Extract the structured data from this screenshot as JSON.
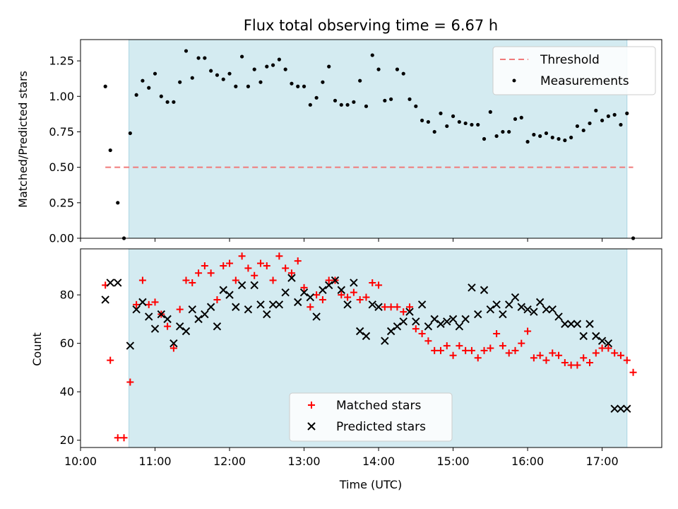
{
  "chart_data": [
    {
      "type": "scatter",
      "title": "Flux total observing time = 6.67 h",
      "xlabel": "",
      "ylabel": "Matched/Predicted stars",
      "xlim": [
        "10:00",
        "17:48"
      ],
      "ylim": [
        0,
        1.4
      ],
      "yticks": [
        "0.00",
        "0.25",
        "0.50",
        "0.75",
        "1.00",
        "1.25"
      ],
      "shaded_span": [
        "10:39",
        "17:20"
      ],
      "shade_color": "#d4ebf1",
      "legend_position": "top-right",
      "series": [
        {
          "name": "Threshold",
          "kind": "dashed-line",
          "color": "#f07a7a",
          "x": [
            "10:20",
            "17:25"
          ],
          "y": [
            0.5,
            0.5
          ]
        },
        {
          "name": "Measurements",
          "kind": "dot",
          "color": "#000000",
          "x": [
            "10:20",
            "10:24",
            "10:30",
            "10:35",
            "10:40",
            "10:45",
            "10:50",
            "10:55",
            "11:00",
            "11:05",
            "11:10",
            "11:15",
            "11:20",
            "11:25",
            "11:30",
            "11:35",
            "11:40",
            "11:45",
            "11:50",
            "11:55",
            "12:00",
            "12:05",
            "12:10",
            "12:15",
            "12:20",
            "12:25",
            "12:30",
            "12:35",
            "12:40",
            "12:45",
            "12:50",
            "12:55",
            "13:00",
            "13:05",
            "13:10",
            "13:15",
            "13:20",
            "13:25",
            "13:30",
            "13:35",
            "13:40",
            "13:45",
            "13:50",
            "13:55",
            "14:00",
            "14:05",
            "14:10",
            "14:15",
            "14:20",
            "14:25",
            "14:30",
            "14:35",
            "14:40",
            "14:45",
            "14:50",
            "14:55",
            "15:00",
            "15:05",
            "15:10",
            "15:15",
            "15:20",
            "15:25",
            "15:30",
            "15:35",
            "15:40",
            "15:45",
            "15:50",
            "15:55",
            "16:00",
            "16:05",
            "16:10",
            "16:15",
            "16:20",
            "16:25",
            "16:30",
            "16:35",
            "16:40",
            "16:45",
            "16:50",
            "16:55",
            "17:00",
            "17:05",
            "17:10",
            "17:15",
            "17:20",
            "17:25"
          ],
          "y": [
            1.07,
            0.62,
            0.25,
            0.0,
            0.74,
            1.01,
            1.11,
            1.06,
            1.16,
            1.0,
            0.96,
            0.96,
            1.1,
            1.32,
            1.13,
            1.27,
            1.27,
            1.18,
            1.15,
            1.12,
            1.16,
            1.07,
            1.28,
            1.07,
            1.19,
            1.1,
            1.21,
            1.22,
            1.26,
            1.19,
            1.09,
            1.07,
            1.07,
            0.94,
            0.99,
            1.1,
            1.21,
            0.97,
            0.94,
            0.94,
            0.96,
            1.11,
            0.93,
            1.29,
            1.19,
            0.97,
            0.98,
            1.19,
            1.16,
            0.98,
            0.93,
            0.83,
            0.82,
            0.75,
            0.88,
            0.79,
            0.86,
            0.82,
            0.81,
            0.8,
            0.8,
            0.7,
            0.89,
            0.72,
            0.75,
            0.75,
            0.84,
            0.85,
            0.68,
            0.73,
            0.72,
            0.74,
            0.71,
            0.7,
            0.69,
            0.71,
            0.79,
            0.76,
            0.81,
            0.9,
            0.83,
            0.86,
            0.87,
            0.8,
            0.88,
            0.0
          ]
        }
      ]
    },
    {
      "type": "scatter",
      "title": "",
      "xlabel": "Time (UTC)",
      "ylabel": "Count",
      "xlim": [
        "10:00",
        "17:48"
      ],
      "ylim": [
        17,
        99
      ],
      "xticks": [
        "10:00",
        "11:00",
        "12:00",
        "13:00",
        "14:00",
        "15:00",
        "16:00",
        "17:00"
      ],
      "yticks": [
        "20",
        "40",
        "60",
        "80"
      ],
      "shaded_span": [
        "10:39",
        "17:20"
      ],
      "shade_color": "#d4ebf1",
      "legend_position": "bottom-center",
      "series": [
        {
          "name": "Matched stars",
          "kind": "plus",
          "color": "#ff0000",
          "x": [
            "10:20",
            "10:24",
            "10:30",
            "10:35",
            "10:40",
            "10:45",
            "10:50",
            "10:55",
            "11:00",
            "11:05",
            "11:10",
            "11:15",
            "11:20",
            "11:25",
            "11:30",
            "11:35",
            "11:40",
            "11:45",
            "11:50",
            "11:55",
            "12:00",
            "12:05",
            "12:10",
            "12:15",
            "12:20",
            "12:25",
            "12:30",
            "12:35",
            "12:40",
            "12:45",
            "12:50",
            "12:55",
            "13:00",
            "13:05",
            "13:10",
            "13:15",
            "13:20",
            "13:25",
            "13:30",
            "13:35",
            "13:40",
            "13:45",
            "13:50",
            "13:55",
            "14:00",
            "14:05",
            "14:10",
            "14:15",
            "14:20",
            "14:25",
            "14:30",
            "14:35",
            "14:40",
            "14:45",
            "14:50",
            "14:55",
            "15:00",
            "15:05",
            "15:10",
            "15:15",
            "15:20",
            "15:25",
            "15:30",
            "15:35",
            "15:40",
            "15:45",
            "15:50",
            "15:55",
            "16:00",
            "16:05",
            "16:10",
            "16:15",
            "16:20",
            "16:25",
            "16:30",
            "16:35",
            "16:40",
            "16:45",
            "16:50",
            "16:55",
            "17:00",
            "17:05",
            "17:10",
            "17:15",
            "17:20",
            "17:25"
          ],
          "y": [
            84,
            53,
            21,
            21,
            44,
            76,
            86,
            76,
            77,
            72,
            67,
            58,
            74,
            86,
            85,
            89,
            92,
            89,
            78,
            92,
            93,
            86,
            96,
            91,
            88,
            93,
            92,
            86,
            96,
            91,
            89,
            94,
            83,
            75,
            80,
            78,
            86,
            86,
            80,
            79,
            81,
            78,
            79,
            85,
            84,
            75,
            75,
            75,
            73,
            75,
            66,
            64,
            61,
            57,
            57,
            59,
            55,
            59,
            57,
            57,
            54,
            57,
            58,
            64,
            59,
            56,
            57,
            60,
            65,
            54,
            55,
            53,
            56,
            55,
            52,
            51,
            51,
            54,
            52,
            56,
            58,
            58,
            56,
            55,
            53,
            48
          ]
        },
        {
          "name": "Predicted stars",
          "kind": "cross",
          "color": "#000000",
          "x": [
            "10:20",
            "10:24",
            "10:30",
            "10:40",
            "10:45",
            "10:50",
            "10:55",
            "11:00",
            "11:05",
            "11:10",
            "11:15",
            "11:20",
            "11:25",
            "11:30",
            "11:35",
            "11:40",
            "11:45",
            "11:50",
            "11:55",
            "12:00",
            "12:05",
            "12:10",
            "12:15",
            "12:20",
            "12:25",
            "12:30",
            "12:35",
            "12:40",
            "12:45",
            "12:50",
            "12:55",
            "13:00",
            "13:05",
            "13:10",
            "13:15",
            "13:20",
            "13:25",
            "13:30",
            "13:35",
            "13:40",
            "13:45",
            "13:50",
            "13:55",
            "14:00",
            "14:05",
            "14:10",
            "14:15",
            "14:20",
            "14:25",
            "14:30",
            "14:35",
            "14:40",
            "14:45",
            "14:50",
            "14:55",
            "15:00",
            "15:05",
            "15:10",
            "15:15",
            "15:20",
            "15:25",
            "15:30",
            "15:35",
            "15:40",
            "15:45",
            "15:50",
            "15:55",
            "16:00",
            "16:05",
            "16:10",
            "16:15",
            "16:20",
            "16:25",
            "16:30",
            "16:35",
            "16:40",
            "16:45",
            "16:50",
            "16:55",
            "17:00",
            "17:05",
            "17:10",
            "17:15",
            "17:20"
          ],
          "y": [
            78,
            85,
            85,
            59,
            74,
            77,
            71,
            66,
            72,
            70,
            60,
            67,
            65,
            74,
            70,
            72,
            75,
            67,
            82,
            80,
            75,
            84,
            74,
            84,
            76,
            72,
            76,
            76,
            81,
            87,
            77,
            81,
            79,
            71,
            82,
            84,
            86,
            82,
            76,
            85,
            65,
            63,
            76,
            75,
            61,
            65,
            67,
            69,
            73,
            69,
            76,
            67,
            70,
            68,
            69,
            70,
            67,
            70,
            83,
            72,
            82,
            74,
            76,
            72,
            76,
            79,
            75,
            74,
            73,
            77,
            74,
            74,
            71,
            68,
            68,
            68,
            63,
            68,
            63,
            61,
            60,
            33,
            33,
            33
          ]
        }
      ]
    }
  ]
}
